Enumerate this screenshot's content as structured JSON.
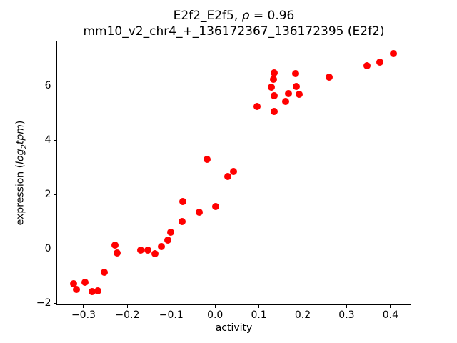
{
  "figure": {
    "background": "#ffffff",
    "title_line1": {
      "prefix": "E2f2_E2f5, ",
      "rho": "ρ",
      "suffix": " = 0.96"
    },
    "title_line2": "mm10_v2_chr4_+_136172367_136172395 (E2f2)",
    "xlabel": "activity",
    "ylabel": {
      "prefix": "expression (",
      "math_main": "log",
      "math_sub": "2",
      "math_rest": "tpm",
      "suffix": ")"
    }
  },
  "chart_data": {
    "type": "scatter",
    "title": "E2f2_E2f5, ρ = 0.96",
    "subtitle": "mm10_v2_chr4_+_136172367_136172395 (E2f2)",
    "xlabel": "activity",
    "ylabel": "expression (log2 tpm)",
    "marker_color": "#ff0000",
    "marker_diameter_px": 10,
    "grid": false,
    "legend": null,
    "xlim": [
      -0.361,
      0.445
    ],
    "ylim": [
      -2.05,
      7.67
    ],
    "xticks": [
      {
        "v": -0.3,
        "label": "−0.3"
      },
      {
        "v": -0.2,
        "label": "−0.2"
      },
      {
        "v": -0.1,
        "label": "−0.1"
      },
      {
        "v": 0.0,
        "label": "0.0"
      },
      {
        "v": 0.1,
        "label": "0.1"
      },
      {
        "v": 0.2,
        "label": "0.2"
      },
      {
        "v": 0.3,
        "label": "0.3"
      },
      {
        "v": 0.4,
        "label": "0.4"
      }
    ],
    "yticks": [
      {
        "v": -2,
        "label": "−2"
      },
      {
        "v": 0,
        "label": "0"
      },
      {
        "v": 2,
        "label": "2"
      },
      {
        "v": 4,
        "label": "4"
      },
      {
        "v": 6,
        "label": "6"
      }
    ],
    "points": [
      [
        -0.322,
        -1.27
      ],
      [
        -0.316,
        -1.48
      ],
      [
        -0.297,
        -1.21
      ],
      [
        -0.281,
        -1.57
      ],
      [
        -0.267,
        -1.54
      ],
      [
        -0.253,
        -0.86
      ],
      [
        -0.228,
        0.14
      ],
      [
        -0.224,
        -0.14
      ],
      [
        -0.17,
        -0.04
      ],
      [
        -0.154,
        -0.03
      ],
      [
        -0.137,
        -0.16
      ],
      [
        -0.122,
        0.11
      ],
      [
        -0.108,
        0.33
      ],
      [
        -0.102,
        0.62
      ],
      [
        -0.075,
        1.01
      ],
      [
        -0.074,
        1.75
      ],
      [
        -0.036,
        1.35
      ],
      [
        -0.018,
        3.3
      ],
      [
        0.002,
        1.58
      ],
      [
        0.029,
        2.67
      ],
      [
        0.042,
        2.86
      ],
      [
        0.095,
        5.27
      ],
      [
        0.128,
        5.98
      ],
      [
        0.133,
        6.26
      ],
      [
        0.134,
        6.51
      ],
      [
        0.134,
        5.66
      ],
      [
        0.134,
        5.07
      ],
      [
        0.161,
        5.45
      ],
      [
        0.167,
        5.74
      ],
      [
        0.184,
        6.47
      ],
      [
        0.186,
        6.0
      ],
      [
        0.191,
        5.71
      ],
      [
        0.26,
        6.33
      ],
      [
        0.346,
        6.77
      ],
      [
        0.375,
        6.88
      ],
      [
        0.406,
        7.22
      ]
    ]
  }
}
